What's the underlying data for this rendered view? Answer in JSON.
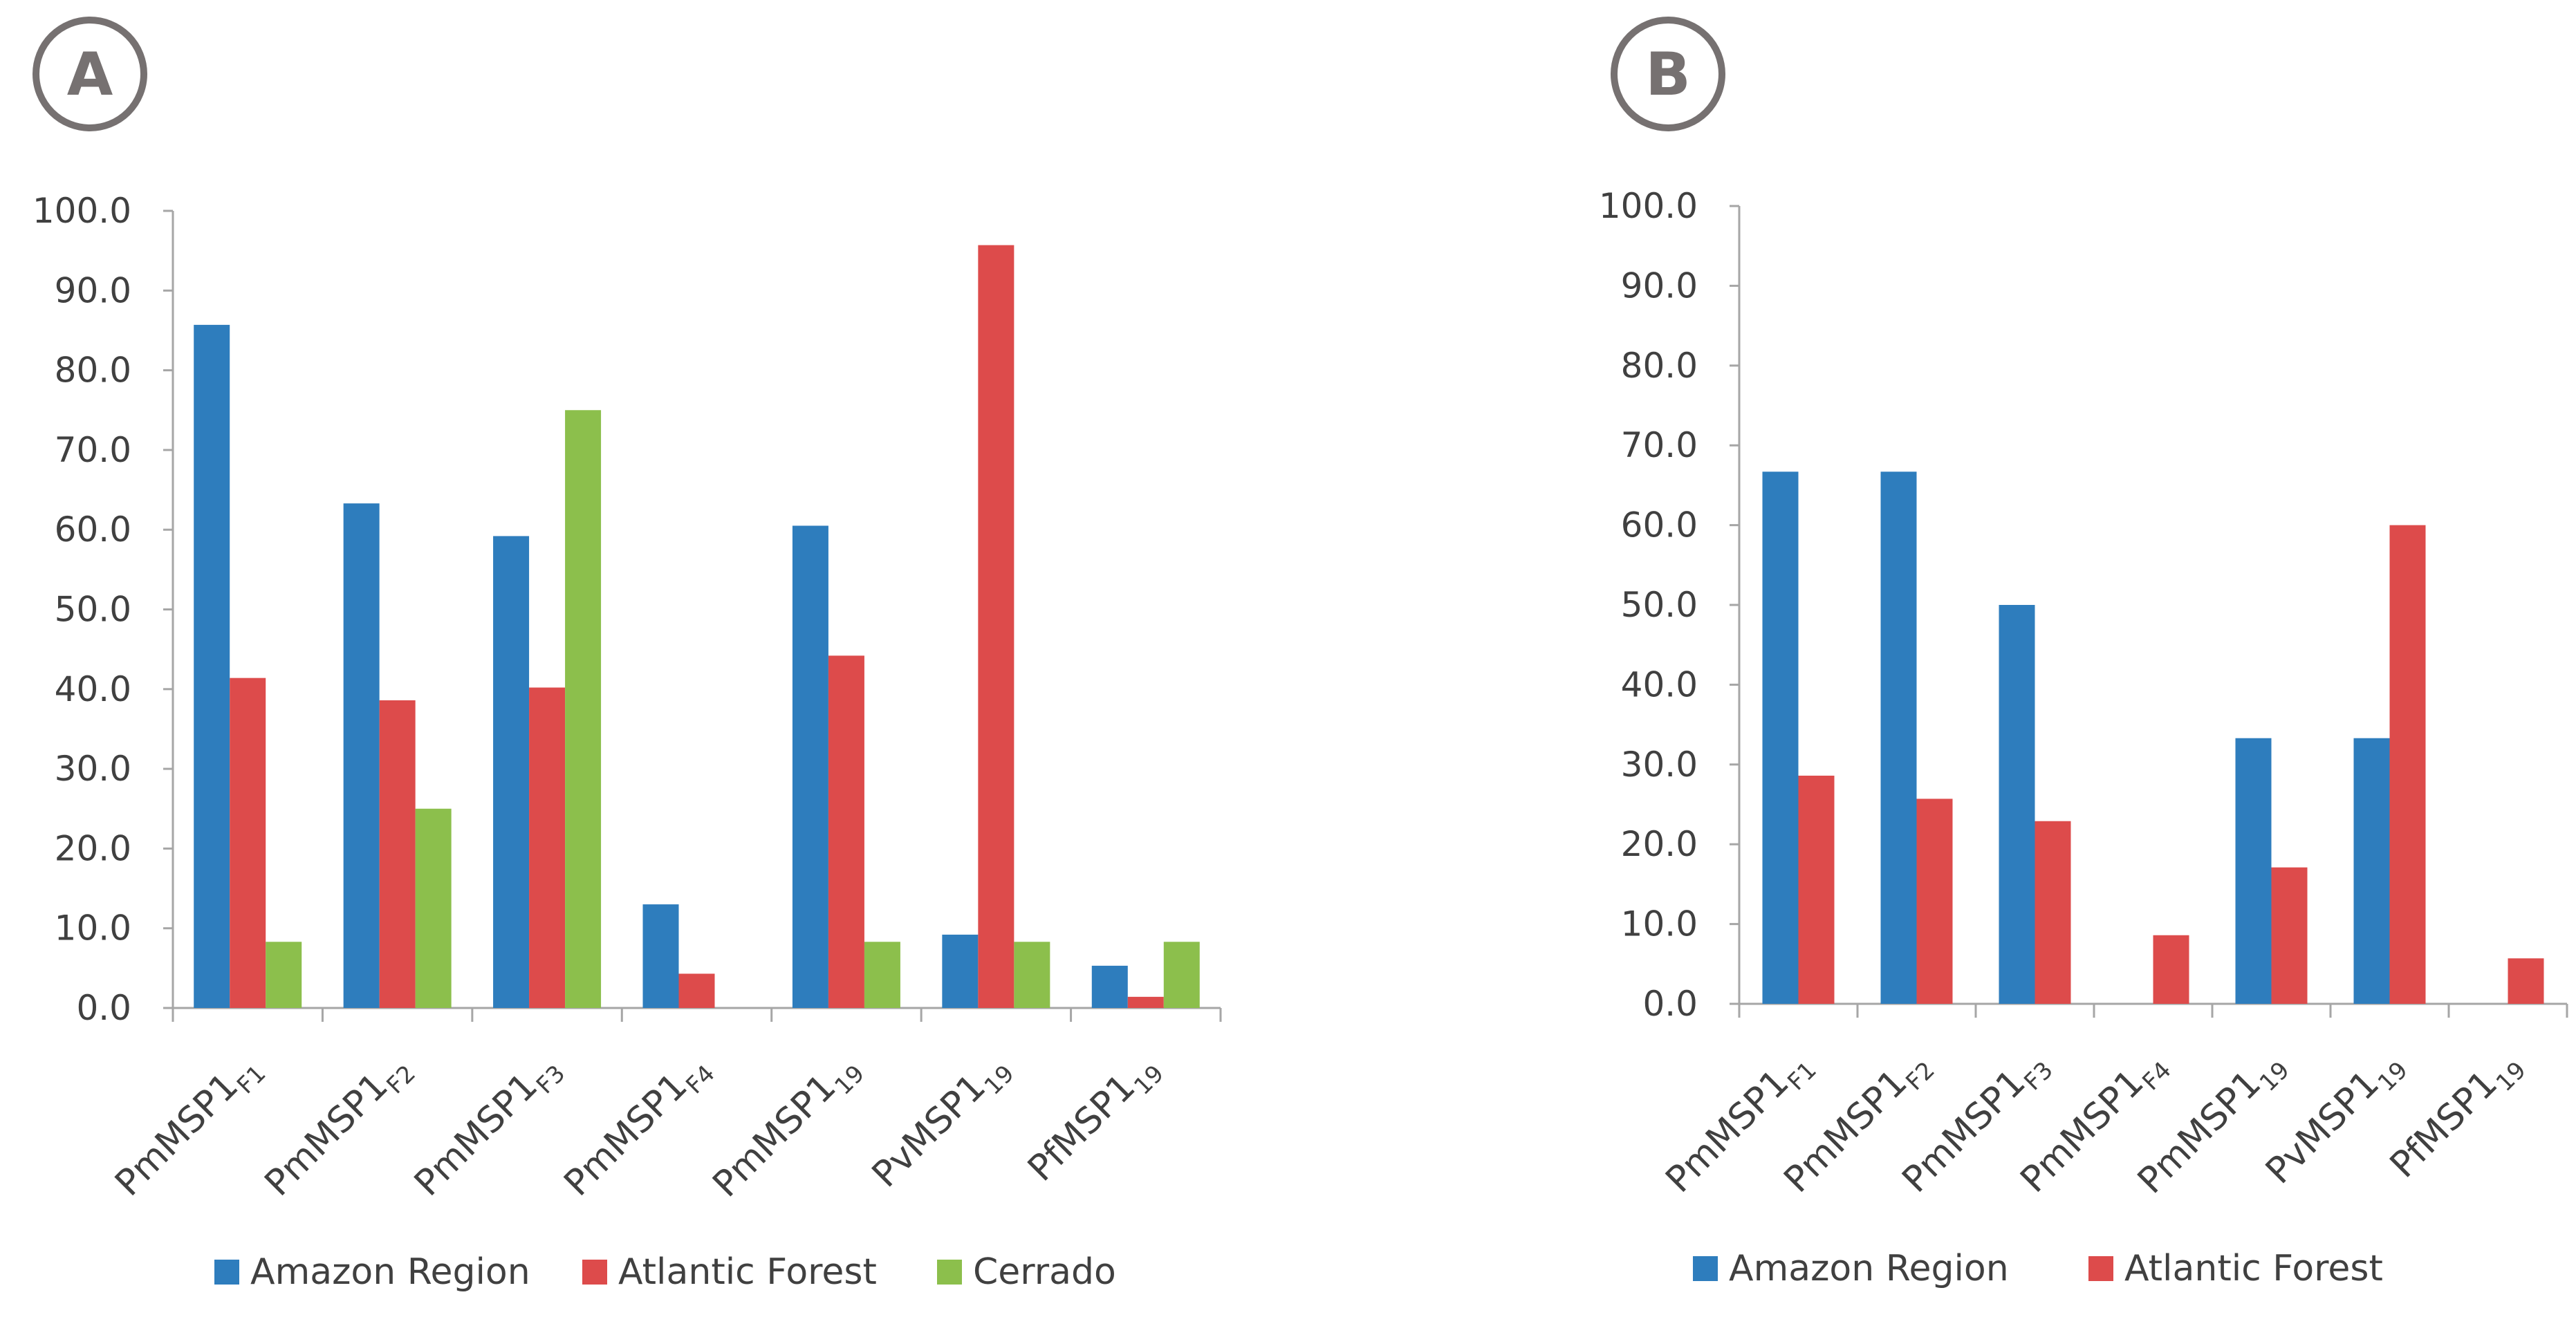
{
  "chart_data": [
    {
      "type": "bar",
      "panel_label": "A",
      "categories": [
        {
          "base": "PmMSP1",
          "sub": "F1"
        },
        {
          "base": "PmMSP1",
          "sub": "F2"
        },
        {
          "base": "PmMSP1",
          "sub": "F3"
        },
        {
          "base": "PmMSP1",
          "sub": "F4"
        },
        {
          "base": "PmMSP1",
          "sub": "19"
        },
        {
          "base": "PvMSP1",
          "sub": "19"
        },
        {
          "base": "PfMSP1",
          "sub": "19"
        }
      ],
      "series": [
        {
          "name": "Amazon Region",
          "color": "#2e7dbd",
          "values": [
            85.7,
            63.3,
            59.2,
            13.0,
            60.5,
            9.2,
            5.3
          ]
        },
        {
          "name": "Atlantic Forest",
          "color": "#dd4b4b",
          "values": [
            41.4,
            38.6,
            40.2,
            4.3,
            44.2,
            95.7,
            1.4
          ]
        },
        {
          "name": "Cerrado",
          "color": "#8cbf4c",
          "values": [
            8.3,
            25.0,
            75.0,
            0.0,
            8.3,
            8.3,
            8.3
          ]
        }
      ],
      "ylim": [
        0,
        100
      ],
      "ytick_labels": [
        "0.0",
        "10.0",
        "20.0",
        "30.0",
        "40.0",
        "50.0",
        "60.0",
        "70.0",
        "80.0",
        "90.0",
        "100.0"
      ],
      "title": "",
      "xlabel": "",
      "ylabel": "",
      "legend": "bottom"
    },
    {
      "type": "bar",
      "panel_label": "B",
      "categories": [
        {
          "base": "PmMSP1",
          "sub": "F1"
        },
        {
          "base": "PmMSP1",
          "sub": "F2"
        },
        {
          "base": "PmMSP1",
          "sub": "F3"
        },
        {
          "base": "PmMSP1",
          "sub": "F4"
        },
        {
          "base": "PmMSP1",
          "sub": "19"
        },
        {
          "base": "PvMSP1",
          "sub": "19"
        },
        {
          "base": "PfMSP1",
          "sub": "19"
        }
      ],
      "series": [
        {
          "name": "Amazon Region",
          "color": "#2e7dbd",
          "values": [
            66.7,
            66.7,
            50.0,
            0.0,
            33.3,
            33.3,
            0.0
          ]
        },
        {
          "name": "Atlantic Forest",
          "color": "#dd4b4b",
          "values": [
            28.6,
            25.7,
            22.9,
            8.6,
            17.1,
            60.0,
            5.7
          ]
        }
      ],
      "ylim": [
        0,
        100
      ],
      "ytick_labels": [
        "0.0",
        "10.0",
        "20.0",
        "30.0",
        "40.0",
        "50.0",
        "60.0",
        "70.0",
        "80.0",
        "90.0",
        "100.0"
      ],
      "title": "",
      "xlabel": "",
      "ylabel": "",
      "legend": "bottom"
    }
  ]
}
